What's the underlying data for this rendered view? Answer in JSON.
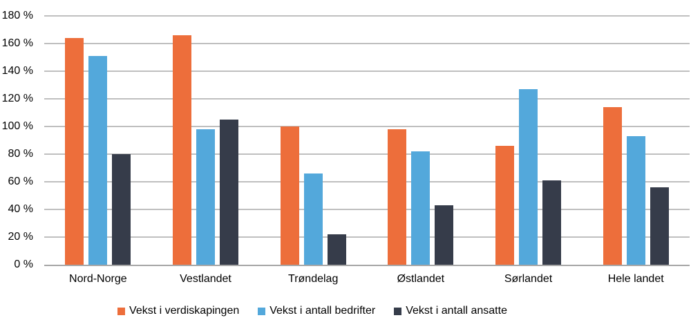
{
  "chart_data": {
    "type": "bar",
    "categories": [
      "Nord-Norge",
      "Vestlandet",
      "Trøndelag",
      "Østlandet",
      "Sørlandet",
      "Hele landet"
    ],
    "series": [
      {
        "name": "Vekst i verdiskapingen",
        "color": "#ed6e3b",
        "values": [
          164,
          166,
          100,
          98,
          86,
          114
        ]
      },
      {
        "name": "Vekst i antall bedrifter",
        "color": "#53a8db",
        "values": [
          151,
          98,
          66,
          82,
          127,
          93
        ]
      },
      {
        "name": "Vekst i antall ansatte",
        "color": "#363c4a",
        "values": [
          80,
          105,
          22,
          43,
          61,
          56
        ]
      }
    ],
    "title": "",
    "xlabel": "",
    "ylabel": "",
    "ylim": [
      0,
      180
    ],
    "ytick_step": 20,
    "ytick_suffix": " %",
    "grid": true,
    "gridline_color": "#bfbfbf",
    "axis_line_color": "#a6a6a6",
    "legend_position": "bottom"
  }
}
